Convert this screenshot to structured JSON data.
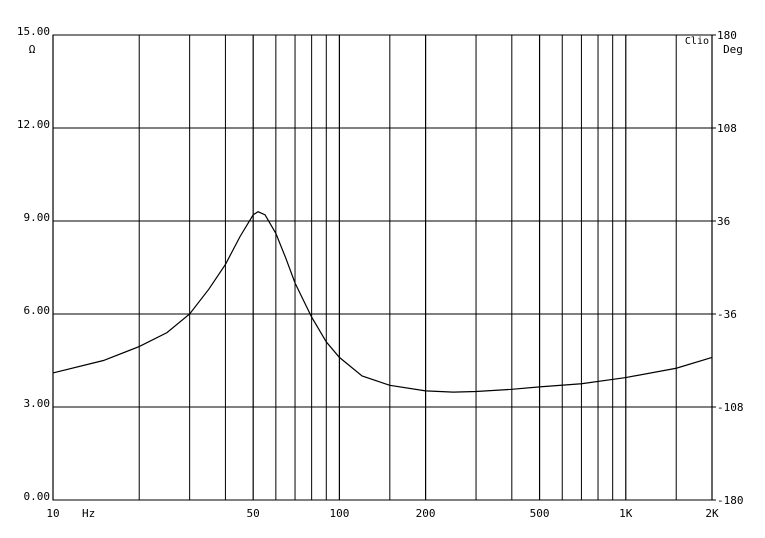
{
  "chart_data": {
    "type": "line",
    "xscale": "log",
    "y_unit": "Ω",
    "y2_unit": "Deg",
    "x_unit": "Hz",
    "brand": "Clio",
    "x": [
      10,
      15,
      20,
      25,
      30,
      35,
      40,
      45,
      50,
      52,
      55,
      60,
      65,
      70,
      80,
      90,
      100,
      120,
      150,
      200,
      250,
      300,
      400,
      500,
      700,
      1000,
      1500,
      2000
    ],
    "values": [
      4.1,
      4.5,
      4.95,
      5.4,
      6.0,
      6.8,
      7.6,
      8.5,
      9.2,
      9.3,
      9.2,
      8.6,
      7.8,
      7.0,
      5.9,
      5.1,
      4.6,
      4.0,
      3.7,
      3.52,
      3.48,
      3.5,
      3.57,
      3.65,
      3.75,
      3.95,
      4.25,
      4.6
    ],
    "color": "#000000",
    "xlim": [
      10,
      2000
    ],
    "xticks": [
      10,
      50,
      100,
      200,
      500,
      {
        "value": 1000,
        "label": "1K"
      },
      {
        "value": 2000,
        "label": "2K"
      }
    ],
    "x_minor_ticks": [
      20,
      30,
      40,
      60,
      70,
      80,
      90,
      150,
      300,
      400,
      600,
      700,
      800,
      900,
      1500
    ],
    "ylim": [
      0,
      15
    ],
    "yticks": [
      {
        "value": 0,
        "label": "0.00"
      },
      {
        "value": 3,
        "label": "3.00"
      },
      {
        "value": 6,
        "label": "6.00"
      },
      {
        "value": 9,
        "label": "9.00"
      },
      {
        "value": 12,
        "label": "12.00"
      },
      {
        "value": 15,
        "label": "15.00"
      }
    ],
    "y2lim": [
      -180,
      180
    ],
    "y2ticks": [
      -180,
      -108,
      -36,
      36,
      108,
      180
    ],
    "grid": true
  }
}
